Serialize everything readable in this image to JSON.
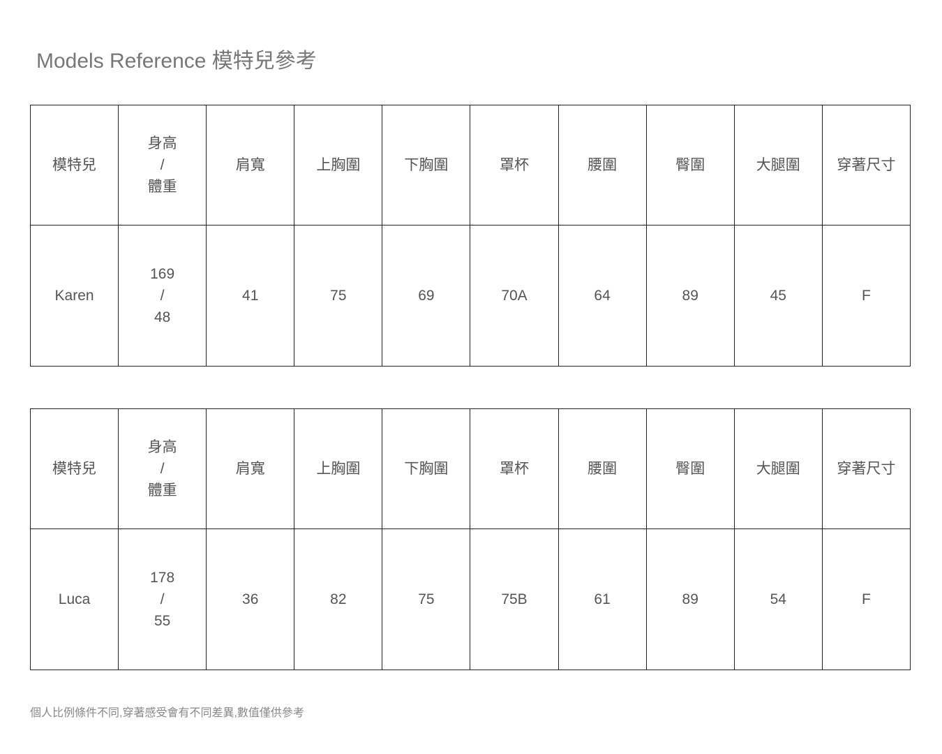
{
  "title": "Models Reference 模特兒參考",
  "columns": [
    "模特兒",
    "身高\n/\n體重",
    "肩寬",
    "上胸圍",
    "下胸圍",
    "罩杯",
    "腰圍",
    "臀圍",
    "大腿圍",
    "穿著尺寸"
  ],
  "models": [
    {
      "values": [
        "Karen",
        "169\n/\n48",
        "41",
        "75",
        "69",
        "70A",
        "64",
        "89",
        "45",
        "F"
      ]
    },
    {
      "values": [
        "Luca",
        "178\n/\n55",
        "36",
        "82",
        "75",
        "75B",
        "61",
        "89",
        "54",
        "F"
      ]
    }
  ],
  "note": "個人比例條件不同,穿著感受會有不同差異,數值僅供參考"
}
